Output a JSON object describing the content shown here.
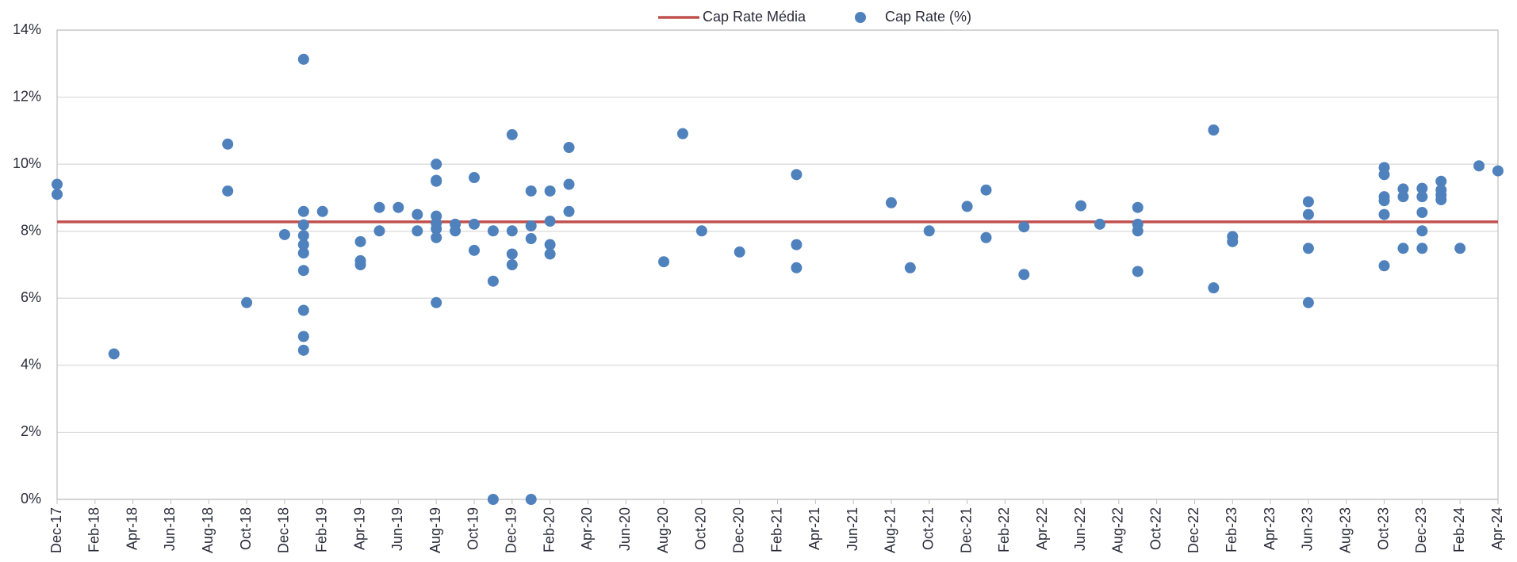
{
  "chart_data": {
    "type": "scatter",
    "xlim": [
      "2017-12",
      "2024-04"
    ],
    "xticks": [
      {
        "value": "2017-12",
        "label": "Dec-17"
      },
      {
        "value": "2018-02",
        "label": "Feb-18"
      },
      {
        "value": "2018-04",
        "label": "Apr-18"
      },
      {
        "value": "2018-06",
        "label": "Jun-18"
      },
      {
        "value": "2018-08",
        "label": "Aug-18"
      },
      {
        "value": "2018-10",
        "label": "Oct-18"
      },
      {
        "value": "2018-12",
        "label": "Dec-18"
      },
      {
        "value": "2019-02",
        "label": "Feb-19"
      },
      {
        "value": "2019-04",
        "label": "Apr-19"
      },
      {
        "value": "2019-06",
        "label": "Jun-19"
      },
      {
        "value": "2019-08",
        "label": "Aug-19"
      },
      {
        "value": "2019-10",
        "label": "Oct-19"
      },
      {
        "value": "2019-12",
        "label": "Dec-19"
      },
      {
        "value": "2020-02",
        "label": "Feb-20"
      },
      {
        "value": "2020-04",
        "label": "Apr-20"
      },
      {
        "value": "2020-06",
        "label": "Jun-20"
      },
      {
        "value": "2020-08",
        "label": "Aug-20"
      },
      {
        "value": "2020-10",
        "label": "Oct-20"
      },
      {
        "value": "2020-12",
        "label": "Dec-20"
      },
      {
        "value": "2021-02",
        "label": "Feb-21"
      },
      {
        "value": "2021-04",
        "label": "Apr-21"
      },
      {
        "value": "2021-06",
        "label": "Jun-21"
      },
      {
        "value": "2021-08",
        "label": "Aug-21"
      },
      {
        "value": "2021-10",
        "label": "Oct-21"
      },
      {
        "value": "2021-12",
        "label": "Dec-21"
      },
      {
        "value": "2022-02",
        "label": "Feb-22"
      },
      {
        "value": "2022-04",
        "label": "Apr-22"
      },
      {
        "value": "2022-06",
        "label": "Jun-22"
      },
      {
        "value": "2022-08",
        "label": "Aug-22"
      },
      {
        "value": "2022-10",
        "label": "Oct-22"
      },
      {
        "value": "2022-12",
        "label": "Dec-22"
      },
      {
        "value": "2023-02",
        "label": "Feb-23"
      },
      {
        "value": "2023-04",
        "label": "Apr-23"
      },
      {
        "value": "2023-06",
        "label": "Jun-23"
      },
      {
        "value": "2023-08",
        "label": "Aug-23"
      },
      {
        "value": "2023-10",
        "label": "Oct-23"
      },
      {
        "value": "2023-12",
        "label": "Dec-23"
      },
      {
        "value": "2024-02",
        "label": "Feb-24"
      },
      {
        "value": "2024-04",
        "label": "Apr-24"
      }
    ],
    "ylim": [
      0,
      14
    ],
    "yticks": [
      {
        "value": 0,
        "label": "0%"
      },
      {
        "value": 2,
        "label": "2%"
      },
      {
        "value": 4,
        "label": "4%"
      },
      {
        "value": 6,
        "label": "6%"
      },
      {
        "value": 8,
        "label": "8%"
      },
      {
        "value": 10,
        "label": "10%"
      },
      {
        "value": 12,
        "label": "12%"
      },
      {
        "value": 14,
        "label": "14%"
      }
    ],
    "grid": true,
    "legend": "top",
    "reference_line": {
      "name": "Cap Rate Média",
      "color": "#c0504d",
      "value": 8.28
    },
    "series": [
      {
        "name": "Cap Rate (%)",
        "color": "#4f81bd",
        "x": [
          "2017-12",
          "2017-12",
          "2018-03",
          "2018-09",
          "2018-09",
          "2018-10",
          "2018-12",
          "2019-01",
          "2019-01",
          "2019-01",
          "2019-01",
          "2019-01",
          "2019-01",
          "2019-01",
          "2019-01",
          "2019-01",
          "2019-01",
          "2019-02",
          "2019-04",
          "2019-04",
          "2019-04",
          "2019-05",
          "2019-05",
          "2019-06",
          "2019-07",
          "2019-07",
          "2019-08",
          "2019-08",
          "2019-08",
          "2019-08",
          "2019-08",
          "2019-08",
          "2019-08",
          "2019-08",
          "2019-09",
          "2019-09",
          "2019-10",
          "2019-10",
          "2019-10",
          "2019-11",
          "2019-11",
          "2019-11",
          "2019-12",
          "2019-12",
          "2019-12",
          "2019-12",
          "2020-01",
          "2020-01",
          "2020-01",
          "2020-01",
          "2020-02",
          "2020-02",
          "2020-02",
          "2020-02",
          "2020-03",
          "2020-03",
          "2020-03",
          "2020-08",
          "2020-09",
          "2020-10",
          "2020-12",
          "2021-03",
          "2021-03",
          "2021-03",
          "2021-08",
          "2021-09",
          "2021-10",
          "2021-12",
          "2022-01",
          "2022-01",
          "2022-03",
          "2022-03",
          "2022-06",
          "2022-07",
          "2022-09",
          "2022-09",
          "2022-09",
          "2022-09",
          "2023-01",
          "2023-01",
          "2023-02",
          "2023-02",
          "2023-06",
          "2023-06",
          "2023-06",
          "2023-06",
          "2023-10",
          "2023-10",
          "2023-10",
          "2023-10",
          "2023-10",
          "2023-10",
          "2023-11",
          "2023-11",
          "2023-11",
          "2023-12",
          "2023-12",
          "2023-12",
          "2023-12",
          "2023-12",
          "2024-01",
          "2024-01",
          "2024-01",
          "2024-01",
          "2024-02",
          "2024-03",
          "2024-04"
        ],
        "values": [
          9.4,
          9.1,
          4.34,
          10.6,
          9.2,
          5.87,
          7.9,
          13.13,
          8.59,
          8.19,
          7.87,
          7.6,
          7.35,
          6.83,
          5.64,
          4.86,
          4.45,
          8.59,
          7.69,
          7.12,
          7.0,
          8.71,
          8.01,
          8.71,
          8.5,
          8.01,
          10.0,
          9.52,
          9.49,
          8.45,
          8.24,
          8.07,
          7.81,
          5.87,
          8.21,
          8.01,
          9.6,
          8.21,
          7.43,
          8.01,
          6.51,
          0,
          10.88,
          8.01,
          7.32,
          7.0,
          9.2,
          8.16,
          7.78,
          0,
          9.2,
          8.3,
          7.6,
          7.32,
          10.5,
          9.4,
          8.59,
          7.09,
          10.91,
          8.01,
          7.38,
          9.69,
          7.6,
          6.91,
          8.85,
          6.91,
          8.01,
          8.74,
          9.23,
          7.81,
          8.13,
          6.71,
          8.76,
          8.21,
          8.71,
          8.21,
          8.01,
          6.8,
          11.02,
          6.31,
          7.84,
          7.69,
          8.88,
          8.5,
          7.49,
          5.87,
          9.9,
          9.69,
          9.03,
          8.91,
          8.5,
          6.97,
          9.26,
          9.03,
          7.49,
          9.28,
          9.03,
          8.56,
          8.01,
          7.49,
          9.49,
          9.23,
          9.08,
          8.94,
          7.49,
          9.95,
          9.8
        ]
      }
    ]
  }
}
